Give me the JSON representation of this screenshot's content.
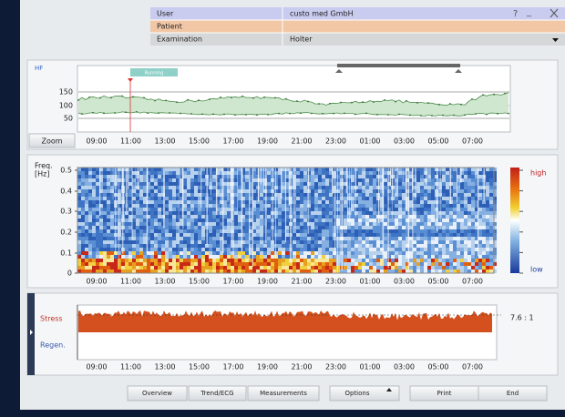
{
  "header": {
    "rows": [
      {
        "label": "User",
        "value": "custo med GmbH"
      },
      {
        "label": "Patient"
      },
      {
        "label": "Examination",
        "value": "Holter"
      }
    ],
    "window_controls": [
      "?",
      "_"
    ]
  },
  "time_labels": [
    "09:00",
    "11:00",
    "13:00",
    "15:00",
    "17:00",
    "19:00",
    "21:00",
    "23:00",
    "01:00",
    "03:00",
    "05:00",
    "07:00"
  ],
  "hr_panel": {
    "label": "HF",
    "marker": "Running",
    "yticks": [
      "150",
      "100",
      "50"
    ],
    "zoom": "Zoom"
  },
  "spectrogram": {
    "label_lines": [
      "Freq.",
      "[Hz]"
    ],
    "yticks": [
      "0.5",
      "0.4",
      "0.3",
      "0.2",
      "0.1",
      "0"
    ],
    "high": "high",
    "low": "low"
  },
  "stress_panel": {
    "stress": "Stress",
    "regen": "Regen.",
    "ratio": "7.6 : 1"
  },
  "buttons": [
    "Overview",
    "Trend/ECG",
    "Measurements",
    "Options",
    "Print",
    "End"
  ]
}
